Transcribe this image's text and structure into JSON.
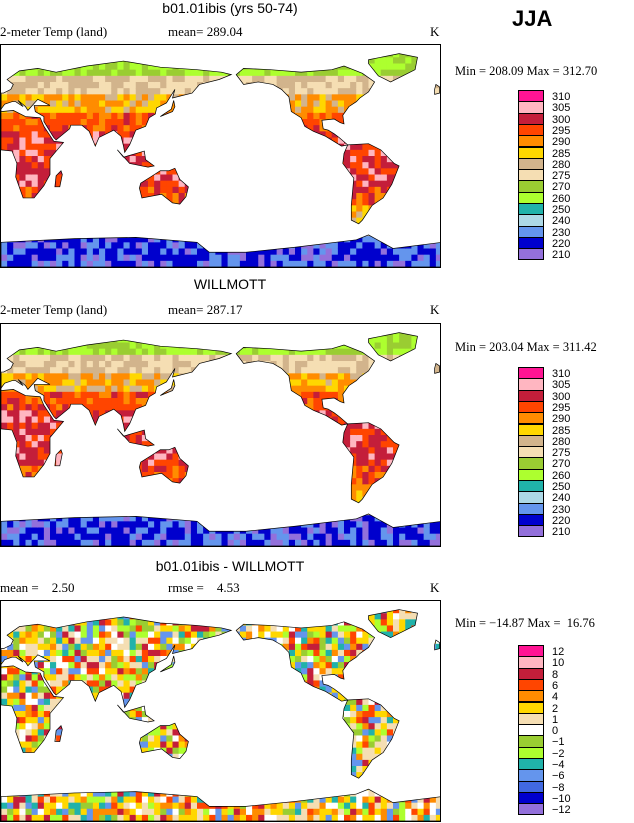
{
  "season": "JJA",
  "panels": [
    {
      "title": "b01.01ibis (yrs 50-74)",
      "left_label": "2-meter Temp (land)",
      "mean_label": "mean= 289.04",
      "unit": "K",
      "minmax": "Min = 208.09 Max = 312.70",
      "colorbar": {
        "labels": [
          "310",
          "305",
          "300",
          "295",
          "290",
          "285",
          "280",
          "275",
          "270",
          "260",
          "250",
          "240",
          "230",
          "220",
          "210"
        ],
        "colors": [
          "#ff1493",
          "#ffb6c1",
          "#c41e3a",
          "#ff4500",
          "#ff8c00",
          "#ffd700",
          "#d2b48c",
          "#f5deb3",
          "#9acd32",
          "#adff2f",
          "#20b2aa",
          "#add8e6",
          "#6495ed",
          "#0000cd",
          "#9370db"
        ]
      }
    },
    {
      "title": "WILLMOTT",
      "left_label": "2-meter Temp (land)",
      "mean_label": "mean= 287.17",
      "unit": "K",
      "minmax": "Min = 203.04 Max = 311.42",
      "colorbar": {
        "labels": [
          "310",
          "305",
          "300",
          "295",
          "290",
          "285",
          "280",
          "275",
          "270",
          "260",
          "250",
          "240",
          "230",
          "220",
          "210"
        ],
        "colors": [
          "#ff1493",
          "#ffb6c1",
          "#c41e3a",
          "#ff4500",
          "#ff8c00",
          "#ffd700",
          "#d2b48c",
          "#f5deb3",
          "#9acd32",
          "#adff2f",
          "#20b2aa",
          "#add8e6",
          "#6495ed",
          "#0000cd",
          "#9370db"
        ]
      }
    },
    {
      "title": "b01.01ibis - WILLMOTT",
      "left_label": "mean =    2.50",
      "mean_label": "rmse =    4.53",
      "unit": "K",
      "minmax": "Min = −14.87 Max =  16.76",
      "colorbar": {
        "labels": [
          "12",
          "10",
          "8",
          "6",
          "4",
          "2",
          "1",
          "0",
          "−1",
          "−2",
          "−4",
          "−6",
          "−8",
          "−10",
          "−12"
        ],
        "colors": [
          "#ff1493",
          "#ffb6c1",
          "#c41e3a",
          "#ff4500",
          "#ff8c00",
          "#ffd700",
          "#f5deb3",
          "#ffffff",
          "#9acd32",
          "#adff2f",
          "#20b2aa",
          "#6495ed",
          "#4169e1",
          "#0000cd",
          "#9370db"
        ]
      }
    }
  ]
}
